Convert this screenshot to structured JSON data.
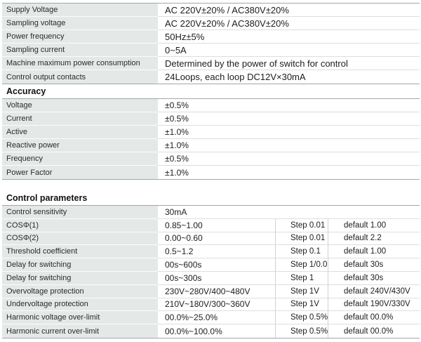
{
  "colors": {
    "label_cell_bg": "#e4e9e8",
    "table_border": "#a2a7a7",
    "row_separator": "#dcdede",
    "text": "#1c1c1c"
  },
  "sections": [
    {
      "id": "general",
      "rows": [
        {
          "label": "Supply Voltage",
          "value": "AC 220V±20% / AC380V±20%"
        },
        {
          "label": "Sampling voltage",
          "value": "AC 220V±20% / AC380V±20%"
        },
        {
          "label": "Power frequency",
          "value": "50Hz±5%"
        },
        {
          "label": "Sampling current",
          "value": "0~5A"
        },
        {
          "label": "Machine maximum power consumption",
          "value": "Determined by the power of switch for control"
        },
        {
          "label": "Control output contacts",
          "value": "24Loops, each loop DC12V×30mA"
        }
      ]
    },
    {
      "id": "accuracy",
      "heading": "Accuracy",
      "rows": [
        {
          "label": "Voltage",
          "value": "±0.5%"
        },
        {
          "label": "Current",
          "value": "±0.5%"
        },
        {
          "label": "Active",
          "value": "±1.0%"
        },
        {
          "label": "Reactive power",
          "value": "±1.0%"
        },
        {
          "label": "Frequency",
          "value": "±0.5%"
        },
        {
          "label": "Power Factor",
          "value": "±1.0%"
        }
      ]
    },
    {
      "id": "control",
      "heading": "Control parameters",
      "rows": [
        {
          "label": "Control sensitivity",
          "value": "30mA",
          "step": "",
          "default": ""
        },
        {
          "label": "COSΦ(1)",
          "value": "0.85~1.00",
          "step": "Step 0.01",
          "default": "default 1.00"
        },
        {
          "label": "COSΦ(2)",
          "value": "0.00~0.60",
          "step": "Step 0.01",
          "default": "default 2.2"
        },
        {
          "label": "Threshold coefficient",
          "value": "0.5~1.2",
          "step": "Step 0.1",
          "default": "default 1.00"
        },
        {
          "label": "Delay for switching",
          "value": "00s~600s",
          "step": "Step 1/0.02",
          "default": "default 30s"
        },
        {
          "label": "Delay for switching",
          "value": "00s~300s",
          "step": "Step 1",
          "default": "default 30s"
        },
        {
          "label": "Overvoltage protection",
          "value": "230V~280V/400~480V",
          "step": "Step 1V",
          "default": "default 240V/430V"
        },
        {
          "label": "Undervoltage protection",
          "value": "210V~180V/300~360V",
          "step": "Step 1V",
          "default": "default 190V/330V"
        },
        {
          "label": "Harmonic voltage over-limit",
          "value": "00.0%~25.0%",
          "step": "Step 0.5%",
          "default": "default 00.0%"
        },
        {
          "label": "Harmonic current over-limit",
          "value": "00.0%~100.0%",
          "step": "Step 0.5%",
          "default": "default 00.0%"
        }
      ]
    }
  ]
}
